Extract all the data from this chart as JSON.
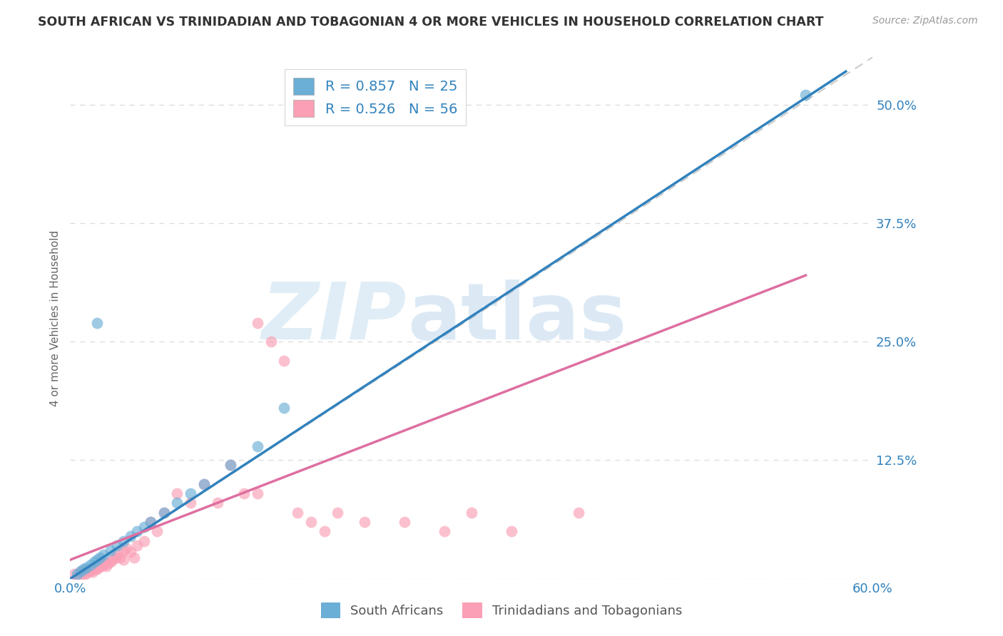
{
  "title": "SOUTH AFRICAN VS TRINIDADIAN AND TOBAGONIAN 4 OR MORE VEHICLES IN HOUSEHOLD CORRELATION CHART",
  "source": "Source: ZipAtlas.com",
  "ylabel": "4 or more Vehicles in Household",
  "xlim": [
    0,
    0.6
  ],
  "ylim": [
    0,
    0.55
  ],
  "xticks": [
    0.0,
    0.1,
    0.2,
    0.3,
    0.4,
    0.5,
    0.6
  ],
  "xticklabels": [
    "0.0%",
    "",
    "",
    "",
    "",
    "",
    "60.0%"
  ],
  "ytick_positions": [
    0.0,
    0.125,
    0.25,
    0.375,
    0.5
  ],
  "ytick_labels": [
    "",
    "12.5%",
    "25.0%",
    "37.5%",
    "50.0%"
  ],
  "watermark_zip": "ZIP",
  "watermark_atlas": "atlas",
  "blue_R": 0.857,
  "blue_N": 25,
  "pink_R": 0.526,
  "pink_N": 56,
  "blue_color": "#6baed6",
  "pink_color": "#fa9fb5",
  "blue_line_color": "#3182bd",
  "pink_line_color": "#de6fa1",
  "ref_line_color": "#cccccc",
  "background_color": "#ffffff",
  "grid_color": "#dddddd",
  "blue_scatter_x": [
    0.005,
    0.008,
    0.01,
    0.012,
    0.015,
    0.018,
    0.02,
    0.022,
    0.025,
    0.03,
    0.035,
    0.04,
    0.045,
    0.05,
    0.055,
    0.06,
    0.07,
    0.08,
    0.09,
    0.1,
    0.12,
    0.14,
    0.02,
    0.55,
    0.16
  ],
  "blue_scatter_y": [
    0.005,
    0.008,
    0.01,
    0.012,
    0.015,
    0.018,
    0.02,
    0.022,
    0.025,
    0.03,
    0.035,
    0.04,
    0.045,
    0.05,
    0.055,
    0.06,
    0.07,
    0.08,
    0.09,
    0.1,
    0.12,
    0.14,
    0.27,
    0.51,
    0.18
  ],
  "pink_scatter_x": [
    0.003,
    0.005,
    0.007,
    0.008,
    0.01,
    0.011,
    0.012,
    0.013,
    0.015,
    0.016,
    0.017,
    0.018,
    0.019,
    0.02,
    0.021,
    0.022,
    0.023,
    0.025,
    0.026,
    0.027,
    0.028,
    0.03,
    0.032,
    0.034,
    0.035,
    0.037,
    0.04,
    0.04,
    0.042,
    0.045,
    0.048,
    0.05,
    0.055,
    0.06,
    0.065,
    0.07,
    0.08,
    0.09,
    0.1,
    0.11,
    0.12,
    0.13,
    0.14,
    0.14,
    0.15,
    0.16,
    0.17,
    0.18,
    0.19,
    0.2,
    0.22,
    0.25,
    0.28,
    0.3,
    0.33,
    0.38
  ],
  "pink_scatter_y": [
    0.005,
    0.003,
    0.007,
    0.004,
    0.008,
    0.005,
    0.006,
    0.009,
    0.008,
    0.01,
    0.007,
    0.01,
    0.012,
    0.01,
    0.012,
    0.015,
    0.013,
    0.015,
    0.018,
    0.013,
    0.016,
    0.018,
    0.02,
    0.022,
    0.025,
    0.022,
    0.03,
    0.02,
    0.032,
    0.028,
    0.022,
    0.035,
    0.04,
    0.06,
    0.05,
    0.07,
    0.09,
    0.08,
    0.1,
    0.08,
    0.12,
    0.09,
    0.27,
    0.09,
    0.25,
    0.23,
    0.07,
    0.06,
    0.05,
    0.07,
    0.06,
    0.06,
    0.05,
    0.07,
    0.05,
    0.07
  ],
  "blue_line_x": [
    0.0,
    0.58
  ],
  "blue_line_y": [
    0.0,
    0.535
  ],
  "pink_line_x": [
    0.0,
    0.55
  ],
  "pink_line_y": [
    0.02,
    0.32
  ],
  "ref_line_x": [
    0.0,
    0.6
  ],
  "ref_line_y": [
    0.0,
    0.55
  ]
}
